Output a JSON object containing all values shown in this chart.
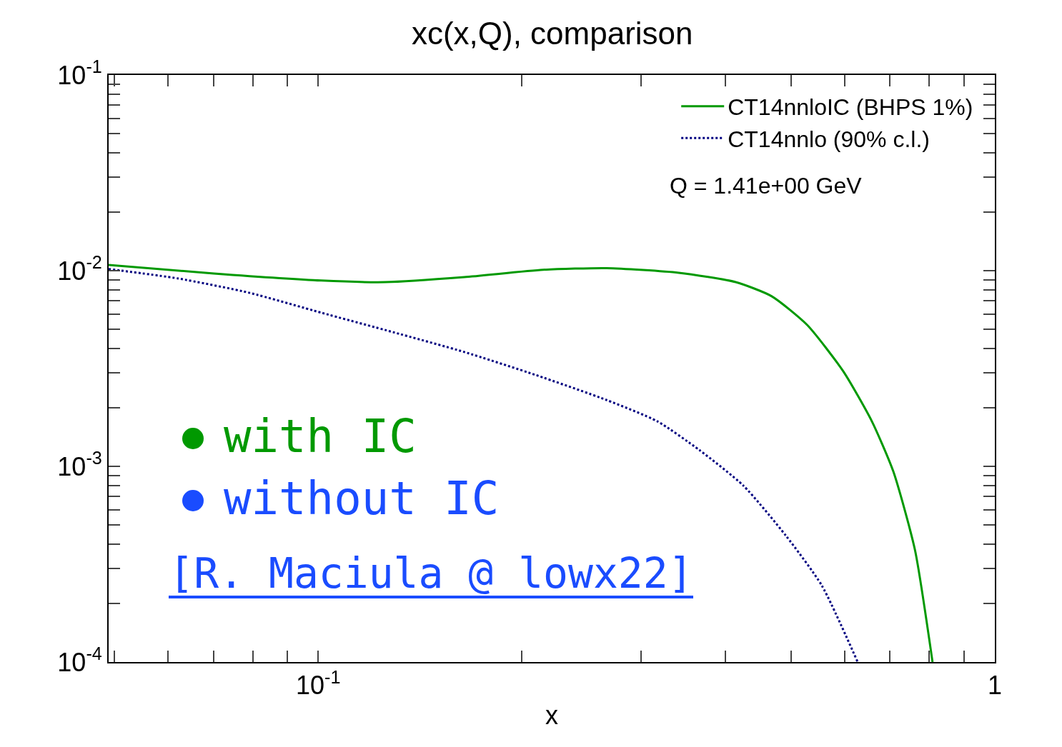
{
  "chart_data": {
    "type": "line",
    "title": "xc(x,Q), comparison",
    "xlabel": "x",
    "log": "xy",
    "grid": false,
    "legend": "top right",
    "marker": "none",
    "xlim": [
      0.049,
      1
    ],
    "ylim": [
      0.0001,
      0.1
    ],
    "xticks": [
      {
        "value": 0.05,
        "label": null
      },
      {
        "value": 0.06,
        "label": null
      },
      {
        "value": 0.07,
        "label": null
      },
      {
        "value": 0.08,
        "label": null
      },
      {
        "value": 0.09,
        "label": null
      },
      {
        "value": 0.1,
        "label": "10$^{-1}$"
      },
      {
        "value": 0.2,
        "label": null
      },
      {
        "value": 0.3,
        "label": null
      },
      {
        "value": 0.4,
        "label": null
      },
      {
        "value": 0.5,
        "label": null
      },
      {
        "value": 0.6,
        "label": null
      },
      {
        "value": 0.7,
        "label": null
      },
      {
        "value": 0.8,
        "label": null
      },
      {
        "value": 0.9,
        "label": null
      },
      {
        "value": 1,
        "label": "1"
      }
    ],
    "yticks": [
      {
        "value": 0.0001,
        "label": "10$^{-4}$"
      },
      {
        "value": 0.0002,
        "label": null
      },
      {
        "value": 0.0003,
        "label": null
      },
      {
        "value": 0.0004,
        "label": null
      },
      {
        "value": 0.0005,
        "label": null
      },
      {
        "value": 0.0006,
        "label": null
      },
      {
        "value": 0.0007,
        "label": null
      },
      {
        "value": 0.0008,
        "label": null
      },
      {
        "value": 0.0009,
        "label": null
      },
      {
        "value": 0.001,
        "label": "10$^{-3}$"
      },
      {
        "value": 0.002,
        "label": null
      },
      {
        "value": 0.003,
        "label": null
      },
      {
        "value": 0.004,
        "label": null
      },
      {
        "value": 0.005,
        "label": null
      },
      {
        "value": 0.006,
        "label": null
      },
      {
        "value": 0.007,
        "label": null
      },
      {
        "value": 0.008,
        "label": null
      },
      {
        "value": 0.009,
        "label": null
      },
      {
        "value": 0.01,
        "label": "10$^{-2}$"
      },
      {
        "value": 0.02,
        "label": null
      },
      {
        "value": 0.03,
        "label": null
      },
      {
        "value": 0.04,
        "label": null
      },
      {
        "value": 0.05,
        "label": null
      },
      {
        "value": 0.06,
        "label": null
      },
      {
        "value": 0.07,
        "label": null
      },
      {
        "value": 0.08,
        "label": null
      },
      {
        "value": 0.09,
        "label": null
      },
      {
        "value": 0.1,
        "label": "10$^{-1}$"
      }
    ],
    "series": [
      {
        "name": "CT14nnloIC (BHPS 1%)",
        "color": "#009900",
        "line_style": "solid",
        "x": [
          0.049,
          0.0701,
          0.101,
          0.1257,
          0.1644,
          0.215,
          0.267,
          0.341,
          0.414,
          0.468,
          0.528,
          0.597,
          0.658,
          0.708,
          0.762,
          0.809
        ],
        "values": [
          0.0107,
          0.00967,
          0.0089,
          0.00874,
          0.00927,
          0.0101,
          0.0103,
          0.00975,
          0.00874,
          0.0074,
          0.00528,
          0.00306,
          0.0017,
          0.00094,
          0.000374,
          0.0001
        ]
      },
      {
        "name": "CT14nnlo (90% c.l.)",
        "color": "#000080",
        "line_style": "dotted",
        "x": [
          0.049,
          0.0621,
          0.0792,
          0.101,
          0.129,
          0.1644,
          0.2096,
          0.267,
          0.317,
          0.366,
          0.425,
          0.491,
          0.555,
          0.627
        ],
        "values": [
          0.0102,
          0.00912,
          0.0077,
          0.0061,
          0.00485,
          0.00384,
          0.00293,
          0.00218,
          0.0017,
          0.00121,
          0.000797,
          0.000443,
          0.000246,
          0.0001
        ]
      }
    ],
    "annotations": [
      "Q = 1.41e+00 GeV",
      "with IC",
      "without IC",
      "[R. Maciula @ lowx22]"
    ]
  }
}
